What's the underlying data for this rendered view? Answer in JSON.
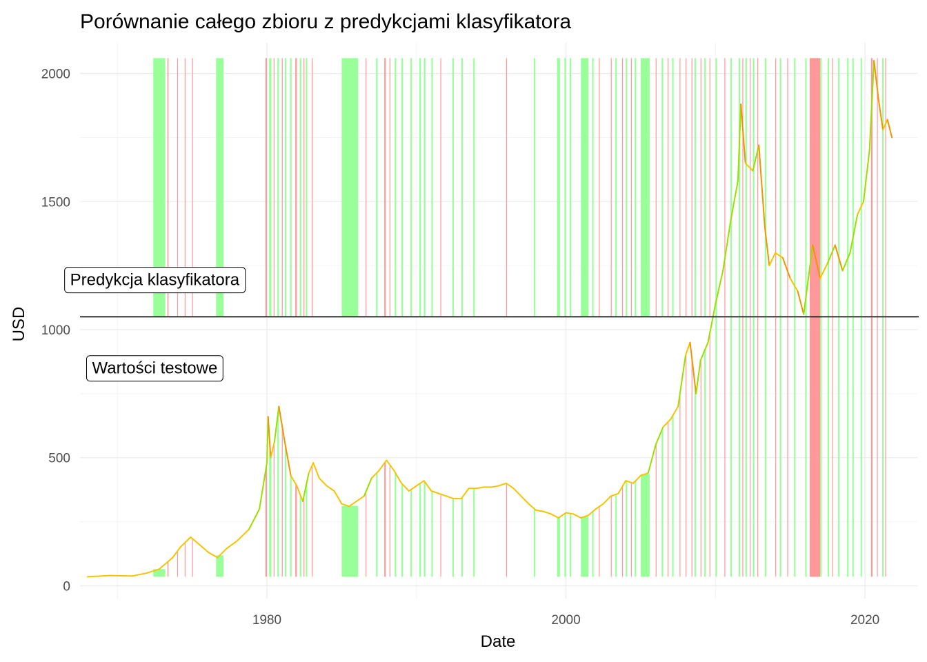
{
  "chart_data": {
    "type": "line",
    "title": "Porównanie całego zbioru z predykcjami klasyfikatora",
    "xlabel": "Date",
    "ylabel": "USD",
    "xlim": [
      1967.5,
      2023.5
    ],
    "ylim": [
      -50,
      2120
    ],
    "x_ticks": [
      1980,
      2000,
      2020
    ],
    "y_ticks": [
      0,
      500,
      1000,
      1500,
      2000
    ],
    "grid": true,
    "divider_value": 1050,
    "colors": {
      "line_base": "#f5c400",
      "line_up": "#9adf00",
      "line_down": "#f29400",
      "band_green": "#99ff99",
      "band_red": "#ff9999",
      "divider": "#000000"
    },
    "annotations": [
      {
        "label": "Predykcja klasyfikatora",
        "x": 1972.5,
        "y": 1195
      },
      {
        "label": "Wartości testowe",
        "x": 1972.5,
        "y": 850
      }
    ],
    "series": [
      {
        "points": [
          [
            1968.0,
            35
          ],
          [
            1969.5,
            40
          ],
          [
            1971.0,
            38
          ],
          [
            1972.0,
            50
          ],
          [
            1972.8,
            65
          ],
          [
            1973.3,
            90
          ],
          [
            1973.7,
            110
          ],
          [
            1974.2,
            150
          ],
          [
            1974.9,
            190
          ],
          [
            1975.4,
            165
          ],
          [
            1976.1,
            130
          ],
          [
            1976.7,
            110
          ],
          [
            1977.3,
            145
          ],
          [
            1978.0,
            175
          ],
          [
            1978.8,
            220
          ],
          [
            1979.5,
            300
          ],
          [
            1980.0,
            480
          ],
          [
            1980.08,
            660
          ],
          [
            1980.25,
            500
          ],
          [
            1980.5,
            560
          ],
          [
            1980.8,
            700
          ],
          [
            1981.2,
            560
          ],
          [
            1981.6,
            430
          ],
          [
            1982.0,
            390
          ],
          [
            1982.4,
            330
          ],
          [
            1982.8,
            440
          ],
          [
            1983.1,
            480
          ],
          [
            1983.5,
            420
          ],
          [
            1984.0,
            390
          ],
          [
            1984.5,
            370
          ],
          [
            1985.0,
            320
          ],
          [
            1985.5,
            310
          ],
          [
            1986.0,
            330
          ],
          [
            1986.5,
            350
          ],
          [
            1987.0,
            420
          ],
          [
            1987.5,
            450
          ],
          [
            1988.0,
            490
          ],
          [
            1988.5,
            450
          ],
          [
            1989.0,
            400
          ],
          [
            1989.5,
            370
          ],
          [
            1990.0,
            390
          ],
          [
            1990.5,
            410
          ],
          [
            1991.0,
            370
          ],
          [
            1991.5,
            360
          ],
          [
            1992.0,
            350
          ],
          [
            1992.5,
            340
          ],
          [
            1993.0,
            340
          ],
          [
            1993.5,
            380
          ],
          [
            1994.0,
            380
          ],
          [
            1994.5,
            385
          ],
          [
            1995.0,
            385
          ],
          [
            1995.5,
            390
          ],
          [
            1996.0,
            400
          ],
          [
            1996.5,
            380
          ],
          [
            1997.0,
            350
          ],
          [
            1997.5,
            320
          ],
          [
            1998.0,
            295
          ],
          [
            1998.5,
            290
          ],
          [
            1999.0,
            280
          ],
          [
            1999.5,
            265
          ],
          [
            2000.0,
            285
          ],
          [
            2000.5,
            280
          ],
          [
            2001.0,
            265
          ],
          [
            2001.5,
            275
          ],
          [
            2002.0,
            300
          ],
          [
            2002.5,
            320
          ],
          [
            2003.0,
            350
          ],
          [
            2003.5,
            360
          ],
          [
            2004.0,
            410
          ],
          [
            2004.5,
            400
          ],
          [
            2005.0,
            430
          ],
          [
            2005.5,
            440
          ],
          [
            2006.0,
            550
          ],
          [
            2006.5,
            620
          ],
          [
            2007.0,
            650
          ],
          [
            2007.5,
            700
          ],
          [
            2008.0,
            900
          ],
          [
            2008.3,
            950
          ],
          [
            2008.7,
            750
          ],
          [
            2009.0,
            880
          ],
          [
            2009.5,
            950
          ],
          [
            2010.0,
            1100
          ],
          [
            2010.5,
            1230
          ],
          [
            2011.0,
            1420
          ],
          [
            2011.5,
            1580
          ],
          [
            2011.7,
            1880
          ],
          [
            2012.0,
            1650
          ],
          [
            2012.5,
            1620
          ],
          [
            2012.9,
            1720
          ],
          [
            2013.3,
            1400
          ],
          [
            2013.6,
            1250
          ],
          [
            2014.0,
            1300
          ],
          [
            2014.5,
            1280
          ],
          [
            2015.0,
            1200
          ],
          [
            2015.5,
            1150
          ],
          [
            2015.9,
            1060
          ],
          [
            2016.5,
            1330
          ],
          [
            2017.0,
            1200
          ],
          [
            2017.5,
            1260
          ],
          [
            2018.0,
            1330
          ],
          [
            2018.5,
            1230
          ],
          [
            2019.0,
            1300
          ],
          [
            2019.5,
            1450
          ],
          [
            2019.9,
            1500
          ],
          [
            2020.3,
            1700
          ],
          [
            2020.6,
            2050
          ],
          [
            2020.9,
            1900
          ],
          [
            2021.2,
            1780
          ],
          [
            2021.5,
            1820
          ],
          [
            2021.8,
            1750
          ]
        ]
      }
    ],
    "bands": {
      "green": [
        [
          1972.4,
          1973.2
        ],
        [
          1976.6,
          1977.1
        ],
        [
          1980.15,
          1980.3
        ],
        [
          1980.7,
          1980.8
        ],
        [
          1981.2,
          1981.3
        ],
        [
          1981.55,
          1981.65
        ],
        [
          1982.2,
          1982.3
        ],
        [
          1982.6,
          1982.7
        ],
        [
          1985.0,
          1986.1
        ],
        [
          1987.3,
          1987.4
        ],
        [
          1988.55,
          1988.65
        ],
        [
          1989.0,
          1989.1
        ],
        [
          1989.6,
          1989.7
        ],
        [
          1990.2,
          1990.3
        ],
        [
          1990.5,
          1990.6
        ],
        [
          1991.0,
          1991.1
        ],
        [
          1992.4,
          1992.5
        ],
        [
          1993.0,
          1993.1
        ],
        [
          1993.8,
          1993.9
        ],
        [
          1997.85,
          1997.95
        ],
        [
          1999.4,
          1999.6
        ],
        [
          1999.9,
          2000.0
        ],
        [
          2000.25,
          2000.35
        ],
        [
          2001.0,
          2001.5
        ],
        [
          2001.75,
          2001.85
        ],
        [
          2003.3,
          2003.4
        ],
        [
          2004.0,
          2004.1
        ],
        [
          2004.6,
          2004.7
        ],
        [
          2005.0,
          2005.6
        ],
        [
          2006.4,
          2006.5
        ],
        [
          2007.1,
          2007.2
        ],
        [
          2008.6,
          2008.7
        ],
        [
          2009.25,
          2009.35
        ],
        [
          2010.0,
          2010.1
        ],
        [
          2011.0,
          2011.1
        ],
        [
          2011.55,
          2011.65
        ],
        [
          2012.0,
          2012.1
        ],
        [
          2012.5,
          2012.6
        ],
        [
          2013.3,
          2013.4
        ],
        [
          2014.3,
          2014.4
        ],
        [
          2015.25,
          2015.35
        ],
        [
          2016.0,
          2016.1
        ],
        [
          2017.0,
          2017.1
        ],
        [
          2017.5,
          2017.6
        ],
        [
          2018.2,
          2018.3
        ],
        [
          2018.8,
          2018.9
        ],
        [
          2019.15,
          2019.25
        ],
        [
          2019.7,
          2019.8
        ],
        [
          2021.15,
          2021.25
        ]
      ],
      "red": [
        [
          1973.35,
          1973.42
        ],
        [
          1974.0,
          1974.05
        ],
        [
          1974.5,
          1974.55
        ],
        [
          1975.0,
          1975.05
        ],
        [
          1979.9,
          1980.0
        ],
        [
          1980.45,
          1980.5
        ],
        [
          1981.0,
          1981.05
        ],
        [
          1981.9,
          1982.0
        ],
        [
          1982.45,
          1982.5
        ],
        [
          1983.0,
          1983.05
        ],
        [
          1986.6,
          1986.65
        ],
        [
          1987.85,
          1987.95
        ],
        [
          1988.2,
          1988.25
        ],
        [
          1991.6,
          1991.65
        ],
        [
          1996.0,
          1996.05
        ],
        [
          2002.2,
          2002.25
        ],
        [
          2003.0,
          2003.05
        ],
        [
          2003.75,
          2003.8
        ],
        [
          2004.35,
          2004.4
        ],
        [
          2006.0,
          2006.05
        ],
        [
          2006.8,
          2006.85
        ],
        [
          2007.6,
          2007.65
        ],
        [
          2008.0,
          2008.05
        ],
        [
          2008.4,
          2008.45
        ],
        [
          2009.0,
          2009.05
        ],
        [
          2009.6,
          2009.65
        ],
        [
          2010.6,
          2010.65
        ],
        [
          2011.8,
          2011.85
        ],
        [
          2012.3,
          2012.35
        ],
        [
          2012.8,
          2012.85
        ],
        [
          2014.0,
          2014.05
        ],
        [
          2014.8,
          2014.85
        ],
        [
          2016.3,
          2017.0
        ],
        [
          2017.8,
          2017.85
        ],
        [
          2020.4,
          2020.5
        ],
        [
          2020.8,
          2020.85
        ],
        [
          2021.35,
          2021.4
        ]
      ]
    }
  }
}
